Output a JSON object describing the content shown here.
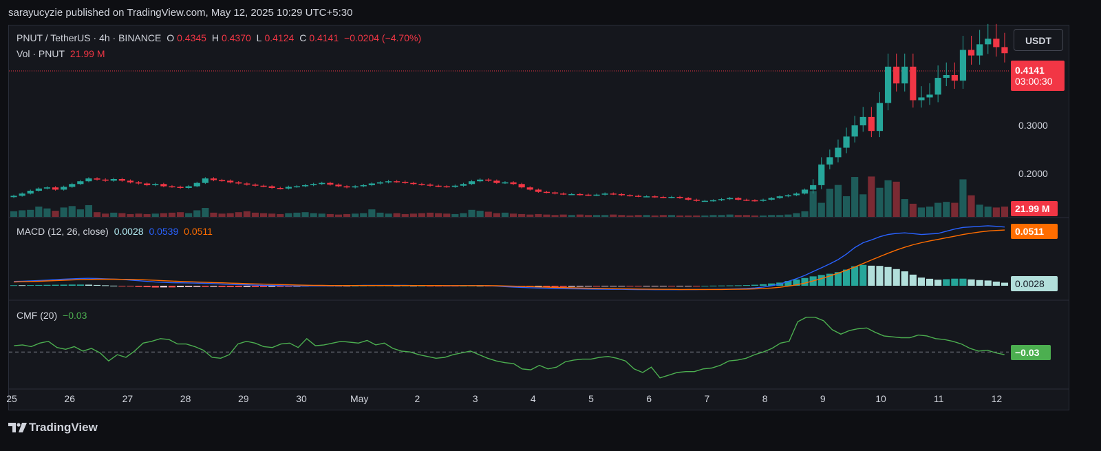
{
  "publisher": "sarayucyzie published on TradingView.com, May 12, 2025 10:29 UTC+5:30",
  "header": {
    "symbol": "PNUT / TetherUS · 4h · BINANCE",
    "o_label": "O",
    "o_value": "0.4345",
    "h_label": "H",
    "h_value": "0.4370",
    "l_label": "L",
    "l_value": "0.4124",
    "c_label": "C",
    "c_value": "0.4141",
    "change": "−0.0204 (−4.70%)",
    "vol_label": "Vol · PNUT",
    "vol_value": "21.99 M"
  },
  "currency_button": "USDT",
  "price_tag": {
    "price": "0.4141",
    "countdown": "03:00:30"
  },
  "volume_tag": "21.99 M",
  "macd_legend": {
    "name": "MACD (12, 26, close)",
    "hist": "0.0028",
    "macd": "0.0539",
    "signal": "0.0511"
  },
  "macd_tags": {
    "signal": "0.0511",
    "hist": "0.0028"
  },
  "cmf_legend": {
    "name": "CMF (20)",
    "value": "−0.03"
  },
  "cmf_tag": "−0.03",
  "branding": "TradingView",
  "colors": {
    "up": "#26a69a",
    "down": "#f23645",
    "macd": "#2962ff",
    "signal": "#ff6d00",
    "cmf": "#4caf50"
  },
  "chart_data": [
    {
      "type": "candlestick",
      "series_name": "PNUT / TetherUS · 4h · BINANCE",
      "price_axis_ticks": [
        "0.3000",
        "0.2000"
      ],
      "ylim": [
        0.12,
        0.46
      ],
      "x_tick_labels": [
        "25",
        "26",
        "27",
        "28",
        "29",
        "30",
        "May",
        "2",
        "3",
        "4",
        "5",
        "6",
        "7",
        "8",
        "9",
        "10",
        "11",
        "12"
      ],
      "last_close": 0.4141,
      "closes": [
        0.159,
        0.163,
        0.168,
        0.172,
        0.174,
        0.17,
        0.175,
        0.18,
        0.185,
        0.19,
        0.188,
        0.186,
        0.189,
        0.186,
        0.183,
        0.181,
        0.178,
        0.18,
        0.176,
        0.175,
        0.173,
        0.176,
        0.182,
        0.19,
        0.187,
        0.186,
        0.183,
        0.181,
        0.179,
        0.177,
        0.176,
        0.173,
        0.172,
        0.175,
        0.176,
        0.178,
        0.18,
        0.182,
        0.179,
        0.176,
        0.174,
        0.176,
        0.178,
        0.181,
        0.183,
        0.185,
        0.184,
        0.182,
        0.18,
        0.179,
        0.177,
        0.176,
        0.175,
        0.177,
        0.18,
        0.185,
        0.188,
        0.186,
        0.182,
        0.183,
        0.18,
        0.174,
        0.17,
        0.166,
        0.165,
        0.163,
        0.162,
        0.162,
        0.161,
        0.16,
        0.161,
        0.163,
        0.162,
        0.16,
        0.159,
        0.158,
        0.158,
        0.157,
        0.156,
        0.157,
        0.155,
        0.152,
        0.15,
        0.15,
        0.151,
        0.153,
        0.155,
        0.152,
        0.151,
        0.15,
        0.152,
        0.155,
        0.158,
        0.16,
        0.163,
        0.17,
        0.178,
        0.215,
        0.228,
        0.245,
        0.265,
        0.285,
        0.3,
        0.275,
        0.325,
        0.39,
        0.36,
        0.39,
        0.33,
        0.335,
        0.34,
        0.37,
        0.375,
        0.365,
        0.42,
        0.41,
        0.43,
        0.44,
        0.425,
        0.4141
      ],
      "volume_ylim": [
        0,
        110
      ],
      "volume": [
        12,
        14,
        15,
        22,
        18,
        13,
        20,
        23,
        16,
        25,
        10,
        7,
        9,
        8,
        6,
        7,
        6,
        7,
        8,
        9,
        10,
        8,
        14,
        19,
        9,
        7,
        8,
        10,
        12,
        9,
        8,
        7,
        6,
        8,
        9,
        10,
        8,
        7,
        6,
        5,
        6,
        7,
        8,
        16,
        9,
        7,
        8,
        6,
        7,
        8,
        9,
        8,
        7,
        6,
        8,
        15,
        13,
        11,
        8,
        9,
        7,
        6,
        5,
        6,
        5,
        4,
        5,
        4,
        5,
        4,
        4,
        4,
        5,
        4,
        3,
        4,
        4,
        3,
        4,
        4,
        3,
        3,
        3,
        3,
        4,
        4,
        5,
        4,
        4,
        3,
        3,
        4,
        4,
        5,
        8,
        12,
        55,
        30,
        60,
        68,
        44,
        85,
        48,
        86,
        62,
        78,
        75,
        38,
        28,
        20,
        22,
        30,
        32,
        30,
        80,
        46,
        26,
        22,
        20,
        21.99
      ]
    },
    {
      "type": "line",
      "title": "MACD (12, 26, close)",
      "ylim": [
        -0.012,
        0.06
      ],
      "macd": [
        0.004,
        0.0042,
        0.0045,
        0.0048,
        0.0052,
        0.0056,
        0.006,
        0.0064,
        0.0067,
        0.0068,
        0.0067,
        0.0064,
        0.0061,
        0.0058,
        0.0052,
        0.0046,
        0.004,
        0.0034,
        0.0031,
        0.0028,
        0.0027,
        0.0026,
        0.0024,
        0.0022,
        0.002,
        0.0016,
        0.0012,
        0.001,
        0.0008,
        0.0006,
        0.0004,
        0.0003,
        0.0001,
        -0.0001,
        -0.0002,
        -0.0002,
        -0.0002,
        -0.0002,
        -0.0001,
        0.0,
        0.0001,
        0.0002,
        0.0003,
        0.0004,
        0.0004,
        0.0004,
        0.0003,
        0.0003,
        0.0002,
        0.0002,
        0.0001,
        0.0001,
        0.0,
        0.0,
        0.0001,
        0.0002,
        0.0001,
        0.0,
        -0.0004,
        -0.0008,
        -0.0012,
        -0.0015,
        -0.0018,
        -0.0021,
        -0.0023,
        -0.0025,
        -0.0027,
        -0.0028,
        -0.0029,
        -0.003,
        -0.0031,
        -0.0032,
        -0.0033,
        -0.0033,
        -0.0034,
        -0.0035,
        -0.0035,
        -0.0036,
        -0.0036,
        -0.0036,
        -0.0036,
        -0.0035,
        -0.0035,
        -0.0034,
        -0.0033,
        -0.0032,
        -0.003,
        -0.0028,
        -0.0025,
        -0.002,
        -0.0012,
        0.0,
        0.0015,
        0.004,
        0.0065,
        0.0095,
        0.013,
        0.0165,
        0.02,
        0.024,
        0.029,
        0.035,
        0.0395,
        0.042,
        0.045,
        0.047,
        0.048,
        0.0485,
        0.0478,
        0.047,
        0.0475,
        0.048,
        0.05,
        0.052,
        0.0535,
        0.054,
        0.0545,
        0.055,
        0.0545,
        0.0539
      ],
      "signal": [
        0.0035,
        0.0037,
        0.0039,
        0.0041,
        0.0044,
        0.0047,
        0.005,
        0.0053,
        0.0056,
        0.0058,
        0.006,
        0.006,
        0.006,
        0.0059,
        0.0058,
        0.0056,
        0.0053,
        0.005,
        0.0046,
        0.0043,
        0.004,
        0.0037,
        0.0034,
        0.0032,
        0.0029,
        0.0027,
        0.0024,
        0.0022,
        0.0019,
        0.0017,
        0.0015,
        0.0013,
        0.0011,
        0.0009,
        0.0007,
        0.0005,
        0.0004,
        0.0003,
        0.0002,
        0.0002,
        0.0002,
        0.0002,
        0.0002,
        0.0002,
        0.0002,
        0.0002,
        0.0002,
        0.0002,
        0.0002,
        0.0002,
        0.0002,
        0.0002,
        0.0001,
        0.0001,
        0.0001,
        0.0001,
        0.0001,
        0.0001,
        0.0,
        -0.0002,
        -0.0004,
        -0.0006,
        -0.0008,
        -0.0011,
        -0.0013,
        -0.0015,
        -0.0017,
        -0.0019,
        -0.0021,
        -0.0023,
        -0.0024,
        -0.0026,
        -0.0027,
        -0.0028,
        -0.0029,
        -0.003,
        -0.0031,
        -0.0032,
        -0.0033,
        -0.0033,
        -0.0034,
        -0.0034,
        -0.0034,
        -0.0034,
        -0.0034,
        -0.0034,
        -0.0033,
        -0.0032,
        -0.0031,
        -0.0029,
        -0.0026,
        -0.0021,
        -0.0014,
        -0.0004,
        0.0008,
        0.0024,
        0.0044,
        0.0066,
        0.009,
        0.0115,
        0.0142,
        0.0172,
        0.0204,
        0.0236,
        0.0268,
        0.0298,
        0.0327,
        0.0353,
        0.0376,
        0.0395,
        0.0411,
        0.0425,
        0.044,
        0.0455,
        0.047,
        0.0482,
        0.0493,
        0.0502,
        0.0507,
        0.0511
      ],
      "legend_values": {
        "histogram": 0.0028,
        "macd": 0.0539,
        "signal": 0.0511
      }
    },
    {
      "type": "line",
      "title": "CMF (20)",
      "ylim": [
        -0.4,
        0.55
      ],
      "zero_line": 0,
      "values": [
        0.07,
        0.08,
        0.06,
        0.1,
        0.12,
        0.05,
        0.03,
        0.06,
        0.01,
        0.04,
        -0.01,
        -0.1,
        -0.03,
        -0.06,
        0.01,
        0.1,
        0.12,
        0.15,
        0.14,
        0.09,
        0.09,
        0.06,
        0.02,
        -0.06,
        -0.07,
        -0.03,
        0.09,
        0.12,
        0.1,
        0.06,
        0.05,
        0.09,
        0.1,
        0.05,
        0.15,
        0.07,
        0.08,
        0.1,
        0.12,
        0.11,
        0.1,
        0.13,
        0.08,
        0.1,
        0.04,
        0.01,
        0.0,
        -0.03,
        -0.05,
        -0.07,
        -0.06,
        -0.03,
        -0.01,
        0.01,
        -0.03,
        -0.07,
        -0.1,
        -0.12,
        -0.13,
        -0.19,
        -0.2,
        -0.15,
        -0.19,
        -0.17,
        -0.11,
        -0.09,
        -0.08,
        -0.08,
        -0.06,
        -0.05,
        -0.07,
        -0.1,
        -0.19,
        -0.23,
        -0.17,
        -0.29,
        -0.26,
        -0.23,
        -0.22,
        -0.22,
        -0.19,
        -0.18,
        -0.15,
        -0.1,
        -0.09,
        -0.07,
        -0.03,
        0.0,
        0.04,
        0.1,
        0.12,
        0.34,
        0.39,
        0.39,
        0.35,
        0.25,
        0.2,
        0.24,
        0.26,
        0.27,
        0.22,
        0.18,
        0.17,
        0.16,
        0.16,
        0.19,
        0.18,
        0.15,
        0.14,
        0.12,
        0.09,
        0.04,
        0.01,
        0.02,
        -0.01,
        -0.03
      ],
      "legend_value": -0.03
    }
  ]
}
